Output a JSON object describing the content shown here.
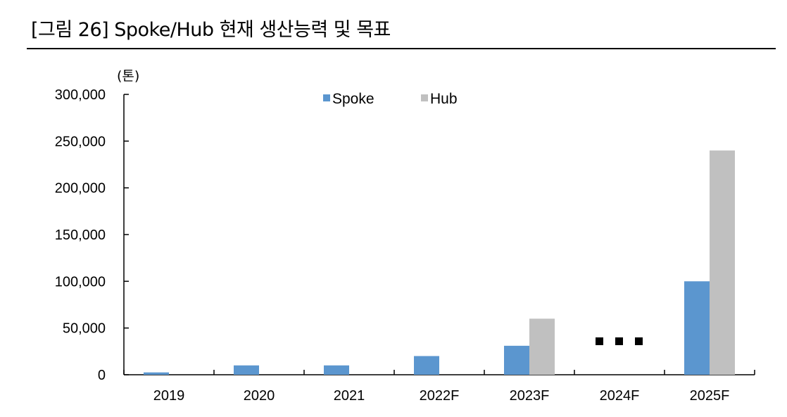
{
  "figure": {
    "title": "[그림 26] Spoke/Hub 현재 생산능력 및 목표"
  },
  "chart_data": {
    "type": "bar",
    "y_unit_label": "(톤)",
    "categories": [
      "2019",
      "2020",
      "2021",
      "2022F",
      "2023F",
      "2024F",
      "2025F"
    ],
    "series": [
      {
        "name": "Spoke",
        "color": "#5b96cf",
        "values": [
          2500,
          10000,
          10000,
          20000,
          31000,
          null,
          100000
        ]
      },
      {
        "name": "Hub",
        "color": "#c0c0c0",
        "values": [
          0,
          0,
          0,
          0,
          60000,
          null,
          240000
        ]
      }
    ],
    "ylim": [
      0,
      300000
    ],
    "yticks": [
      0,
      50000,
      100000,
      150000,
      200000,
      250000,
      300000
    ],
    "ytick_labels": [
      "0",
      "50,000",
      "100,000",
      "150,000",
      "200,000",
      "250,000",
      "300,000"
    ],
    "legend_position": "top-center",
    "gap_marker_category": "2024F",
    "grid": false
  }
}
